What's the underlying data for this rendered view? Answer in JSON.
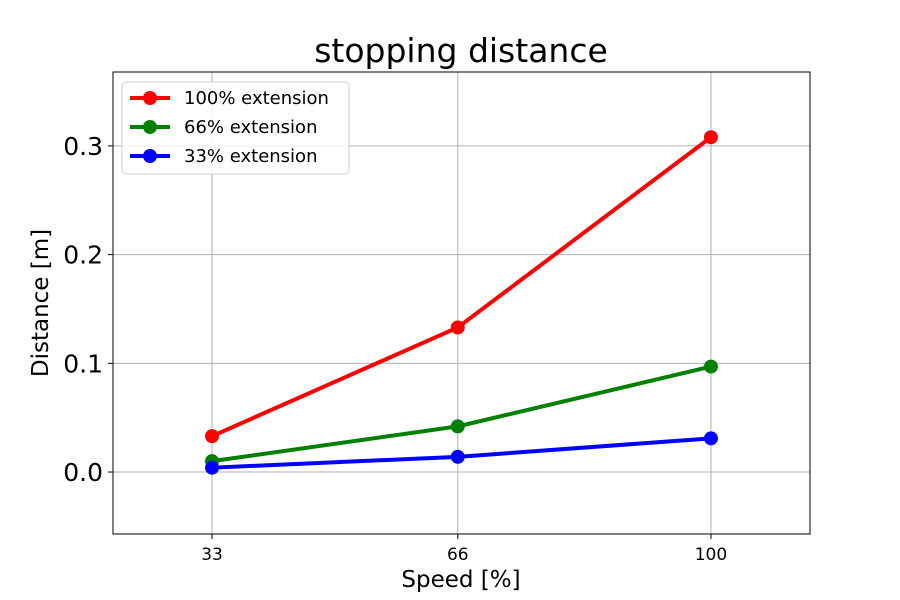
{
  "chart_data": {
    "type": "line",
    "title": "stopping distance",
    "xlabel": "Speed [%]",
    "ylabel": "Distance [m]",
    "x": [
      33,
      66,
      100
    ],
    "xticks": [
      33,
      66,
      100
    ],
    "xlim": [
      19.7,
      113.3
    ],
    "yticks": [
      0.0,
      0.1,
      0.2,
      0.3
    ],
    "ytick_labels": [
      "0.0",
      "0.1",
      "0.2",
      "0.3"
    ],
    "ylim": [
      -0.057,
      0.368
    ],
    "grid": true,
    "legend_position": "top-left",
    "series": [
      {
        "name": "100% extension",
        "color": "#ff0000",
        "values": [
          0.033,
          0.133,
          0.308
        ]
      },
      {
        "name": "66% extension",
        "color": "#008000",
        "values": [
          0.01,
          0.042,
          0.097
        ]
      },
      {
        "name": "33% extension",
        "color": "#0000ff",
        "values": [
          0.004,
          0.014,
          0.031
        ]
      }
    ]
  }
}
